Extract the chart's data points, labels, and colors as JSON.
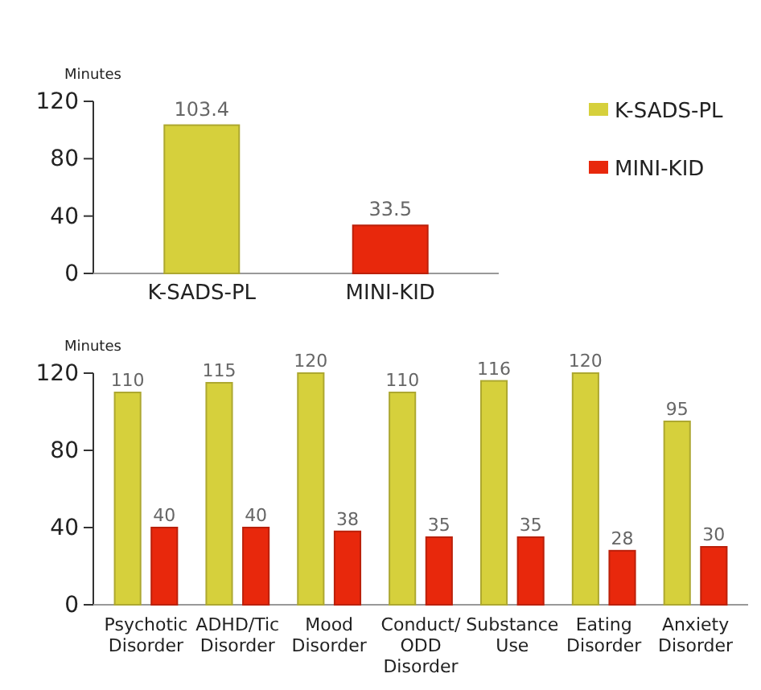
{
  "chart_data": [
    {
      "type": "bar",
      "ylabel": "Minutes",
      "categories": [
        "K-SADS-PL",
        "MINI-KID"
      ],
      "values": [
        103.4,
        33.5
      ],
      "colors": [
        "#d6d03c",
        "#e8280c"
      ],
      "ylim": [
        0,
        120
      ],
      "yticks": [
        0,
        40,
        80,
        120
      ],
      "data_labels": true
    },
    {
      "type": "bar",
      "ylabel": "Minutes",
      "categories": [
        "Psychotic Disorder",
        "ADHD/Tic Disorder",
        "Mood Disorder",
        "Conduct/ ODD Disorder",
        "Substance Use",
        "Eating Disorder",
        "Anxiety Disorder"
      ],
      "series": [
        {
          "name": "K-SADS-PL",
          "color": "#d6d03c",
          "values": [
            110,
            115,
            120,
            110,
            116,
            120,
            95
          ]
        },
        {
          "name": "MINI-KID",
          "color": "#e8280c",
          "values": [
            40,
            40,
            38,
            35,
            35,
            28,
            30
          ]
        }
      ],
      "ylim": [
        0,
        120
      ],
      "yticks": [
        0,
        40,
        80,
        120
      ],
      "data_labels": true,
      "legend": "top right"
    }
  ]
}
